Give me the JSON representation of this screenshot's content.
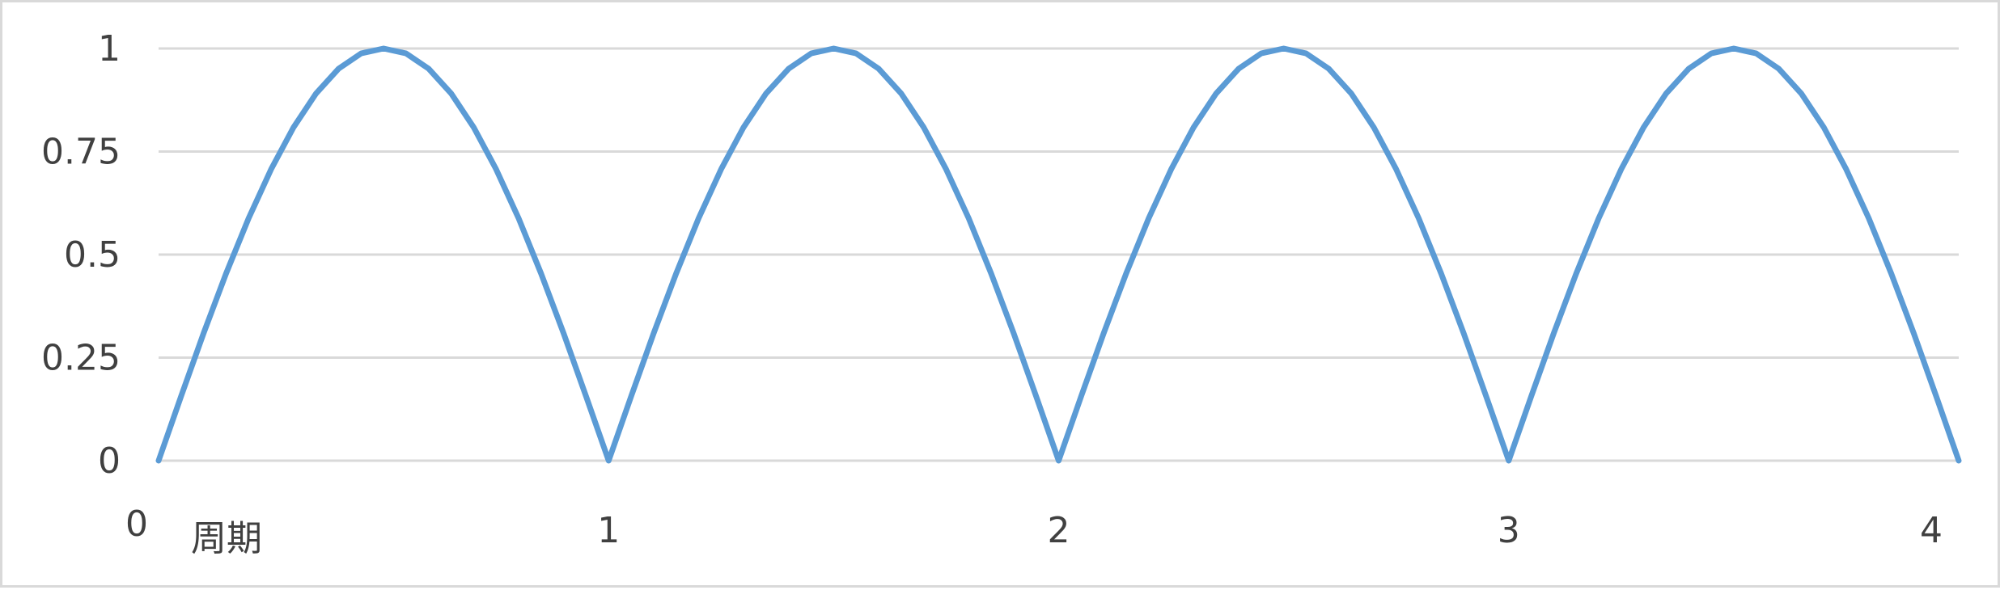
{
  "chart_data": {
    "type": "line",
    "title": "",
    "xlabel": "周期",
    "ylabel": "",
    "xlim": [
      0,
      4
    ],
    "ylim": [
      0,
      1
    ],
    "x_ticks": [
      "0",
      "1",
      "2",
      "3",
      "4"
    ],
    "y_ticks": [
      "0",
      "0.25",
      "0.5",
      "0.75",
      "1"
    ],
    "grid": true,
    "legend": "none",
    "series": [
      {
        "color": "#5b9bd5",
        "x": [
          0,
          0.05,
          0.1,
          0.15,
          0.2,
          0.25,
          0.3,
          0.35,
          0.4,
          0.45,
          0.5,
          0.55,
          0.6,
          0.65,
          0.7,
          0.75,
          0.8,
          0.85,
          0.9,
          0.95,
          1.0,
          1.05,
          1.1,
          1.15,
          1.2,
          1.25,
          1.3,
          1.35,
          1.4,
          1.45,
          1.5,
          1.55,
          1.6,
          1.65,
          1.7,
          1.75,
          1.8,
          1.85,
          1.9,
          1.95,
          2.0,
          2.05,
          2.1,
          2.15,
          2.2,
          2.25,
          2.3,
          2.35,
          2.4,
          2.45,
          2.5,
          2.55,
          2.6,
          2.65,
          2.7,
          2.75,
          2.8,
          2.85,
          2.9,
          2.95,
          3.0,
          3.05,
          3.1,
          3.15,
          3.2,
          3.25,
          3.3,
          3.35,
          3.4,
          3.45,
          3.5,
          3.55,
          3.6,
          3.65,
          3.7,
          3.75,
          3.8,
          3.85,
          3.9,
          3.95,
          4.0
        ],
        "y": [
          0,
          0.156,
          0.309,
          0.454,
          0.588,
          0.707,
          0.809,
          0.891,
          0.951,
          0.988,
          1.0,
          0.988,
          0.951,
          0.891,
          0.809,
          0.707,
          0.588,
          0.454,
          0.309,
          0.156,
          0,
          0.156,
          0.309,
          0.454,
          0.588,
          0.707,
          0.809,
          0.891,
          0.951,
          0.988,
          1.0,
          0.988,
          0.951,
          0.891,
          0.809,
          0.707,
          0.588,
          0.454,
          0.309,
          0.156,
          0,
          0.156,
          0.309,
          0.454,
          0.588,
          0.707,
          0.809,
          0.891,
          0.951,
          0.988,
          1.0,
          0.988,
          0.951,
          0.891,
          0.809,
          0.707,
          0.588,
          0.454,
          0.309,
          0.156,
          0,
          0.156,
          0.309,
          0.454,
          0.588,
          0.707,
          0.809,
          0.891,
          0.951,
          0.988,
          1.0,
          0.988,
          0.951,
          0.891,
          0.809,
          0.707,
          0.588,
          0.454,
          0.309,
          0.156,
          0
        ]
      }
    ]
  }
}
